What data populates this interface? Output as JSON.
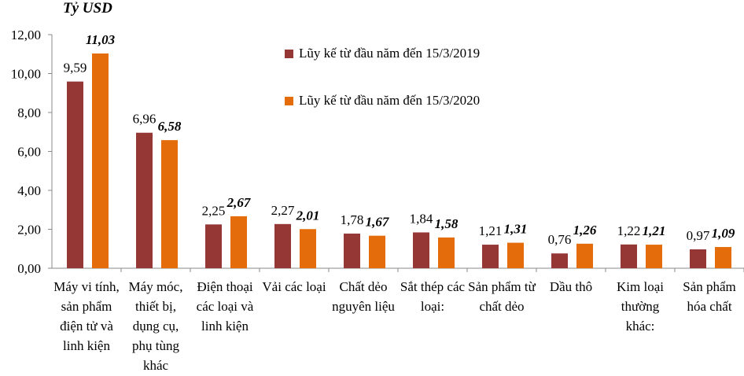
{
  "chart_data": {
    "type": "bar",
    "unit_label": "Tỷ USD",
    "ylim": [
      0,
      12
    ],
    "yticks": [
      "0,00",
      "2,00",
      "4,00",
      "6,00",
      "8,00",
      "10,00",
      "12,00"
    ],
    "categories": [
      "Máy vi tính, sản phẩm điện tử và linh kiện",
      "Máy móc, thiết bị, dụng cụ, phụ tùng khác",
      "Điện thoại các loại và linh kiện",
      "Vải các loại",
      "Chất dẻo nguyên liệu",
      "Sắt thép các loại:",
      "Sản phẩm từ chất dẻo",
      "Dầu thô",
      "Kim loại thường khác:",
      "Sản phẩm hóa chất"
    ],
    "series": [
      {
        "name": "Lũy kế từ đầu năm đến 15/3/2019",
        "color": "#953735",
        "values": [
          9.59,
          6.96,
          2.25,
          2.27,
          1.78,
          1.84,
          1.21,
          0.76,
          1.22,
          0.97
        ]
      },
      {
        "name": "Lũy kế từ đầu năm đến 15/3/2020",
        "color": "#E46C0A",
        "values": [
          11.03,
          6.58,
          2.67,
          2.01,
          1.67,
          1.58,
          1.31,
          1.26,
          1.21,
          1.09
        ]
      }
    ],
    "legend": "top-right"
  }
}
